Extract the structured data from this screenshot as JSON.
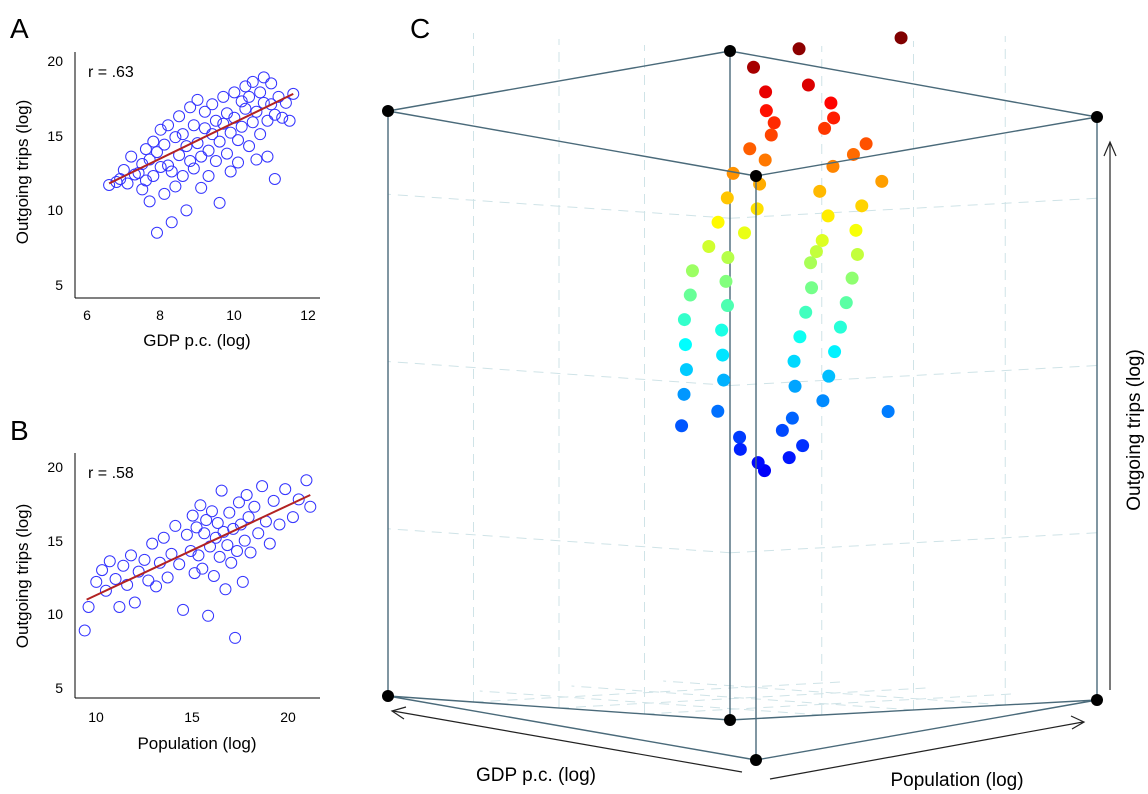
{
  "chart_data": [
    {
      "panel": "A",
      "type": "scatter",
      "annotation": "r = .63",
      "xlabel": "GDP p.c. (log)",
      "ylabel": "Outgoing trips (log)",
      "xlim": [
        6,
        12
      ],
      "ylim": [
        5,
        20
      ],
      "xticks": [
        "6",
        "8",
        "10",
        "12"
      ],
      "yticks": [
        "5",
        "10",
        "15",
        "20"
      ],
      "marker_color": "#3333ff",
      "fit_color": "#b22222",
      "fit_line": [
        [
          6.6,
          11.8
        ],
        [
          11.6,
          17.8
        ]
      ],
      "points": [
        [
          6.6,
          11.7
        ],
        [
          6.8,
          11.9
        ],
        [
          6.9,
          12.1
        ],
        [
          7.0,
          12.7
        ],
        [
          7.1,
          11.8
        ],
        [
          7.2,
          13.6
        ],
        [
          7.3,
          12.4
        ],
        [
          7.4,
          12.5
        ],
        [
          7.5,
          11.4
        ],
        [
          7.5,
          13.1
        ],
        [
          7.6,
          14.1
        ],
        [
          7.6,
          12.0
        ],
        [
          7.7,
          13.4
        ],
        [
          7.7,
          10.6
        ],
        [
          7.8,
          14.6
        ],
        [
          7.8,
          12.3
        ],
        [
          7.9,
          13.9
        ],
        [
          7.9,
          8.5
        ],
        [
          8.0,
          15.4
        ],
        [
          8.0,
          12.9
        ],
        [
          8.1,
          11.1
        ],
        [
          8.1,
          14.4
        ],
        [
          8.2,
          13.0
        ],
        [
          8.2,
          15.7
        ],
        [
          8.3,
          12.6
        ],
        [
          8.3,
          9.2
        ],
        [
          8.4,
          14.9
        ],
        [
          8.4,
          11.6
        ],
        [
          8.5,
          13.7
        ],
        [
          8.5,
          16.3
        ],
        [
          8.6,
          12.3
        ],
        [
          8.6,
          15.1
        ],
        [
          8.7,
          14.3
        ],
        [
          8.7,
          10.0
        ],
        [
          8.8,
          13.3
        ],
        [
          8.8,
          16.9
        ],
        [
          8.9,
          15.7
        ],
        [
          8.9,
          12.8
        ],
        [
          9.0,
          14.5
        ],
        [
          9.0,
          17.4
        ],
        [
          9.1,
          13.6
        ],
        [
          9.1,
          11.5
        ],
        [
          9.2,
          15.5
        ],
        [
          9.2,
          16.6
        ],
        [
          9.3,
          14.0
        ],
        [
          9.3,
          12.3
        ],
        [
          9.4,
          17.1
        ],
        [
          9.4,
          15.1
        ],
        [
          9.5,
          13.3
        ],
        [
          9.5,
          16.0
        ],
        [
          9.6,
          14.6
        ],
        [
          9.6,
          10.5
        ],
        [
          9.7,
          17.6
        ],
        [
          9.7,
          15.8
        ],
        [
          9.8,
          13.8
        ],
        [
          9.8,
          16.5
        ],
        [
          9.9,
          15.2
        ],
        [
          9.9,
          12.6
        ],
        [
          10.0,
          17.9
        ],
        [
          10.0,
          16.2
        ],
        [
          10.1,
          14.7
        ],
        [
          10.1,
          13.2
        ],
        [
          10.2,
          17.3
        ],
        [
          10.2,
          15.6
        ],
        [
          10.3,
          18.3
        ],
        [
          10.3,
          16.8
        ],
        [
          10.4,
          14.3
        ],
        [
          10.4,
          17.6
        ],
        [
          10.5,
          15.9
        ],
        [
          10.5,
          18.6
        ],
        [
          10.6,
          16.6
        ],
        [
          10.6,
          13.4
        ],
        [
          10.7,
          17.9
        ],
        [
          10.7,
          15.1
        ],
        [
          10.8,
          18.9
        ],
        [
          10.8,
          17.2
        ],
        [
          10.9,
          16.0
        ],
        [
          10.9,
          13.6
        ],
        [
          11.0,
          18.5
        ],
        [
          11.0,
          17.1
        ],
        [
          11.1,
          16.4
        ],
        [
          11.1,
          12.1
        ],
        [
          11.2,
          17.6
        ],
        [
          11.3,
          16.2
        ],
        [
          11.4,
          17.2
        ],
        [
          11.5,
          16.0
        ],
        [
          11.6,
          17.8
        ]
      ]
    },
    {
      "panel": "B",
      "type": "scatter",
      "annotation": "r = .58",
      "xlabel": "Population (log)",
      "ylabel": "Outgoing trips (log)",
      "xlim": [
        9,
        21.5
      ],
      "ylim": [
        5,
        20
      ],
      "xticks": [
        "10",
        "15",
        "20"
      ],
      "yticks": [
        "5",
        "10",
        "15",
        "20"
      ],
      "marker_color": "#3333ff",
      "fit_color": "#b22222",
      "fit_line": [
        [
          9.5,
          11.0
        ],
        [
          21.1,
          18.1
        ]
      ],
      "points": [
        [
          9.4,
          8.9
        ],
        [
          9.6,
          10.5
        ],
        [
          10.0,
          12.2
        ],
        [
          10.3,
          13.0
        ],
        [
          10.5,
          11.6
        ],
        [
          10.7,
          13.6
        ],
        [
          11.0,
          12.4
        ],
        [
          11.2,
          10.5
        ],
        [
          11.4,
          13.3
        ],
        [
          11.6,
          12.0
        ],
        [
          11.8,
          14.0
        ],
        [
          12.0,
          10.8
        ],
        [
          12.2,
          12.9
        ],
        [
          12.5,
          13.7
        ],
        [
          12.7,
          12.3
        ],
        [
          12.9,
          14.8
        ],
        [
          13.1,
          11.9
        ],
        [
          13.3,
          13.5
        ],
        [
          13.5,
          15.2
        ],
        [
          13.7,
          12.5
        ],
        [
          13.9,
          14.1
        ],
        [
          14.1,
          16.0
        ],
        [
          14.3,
          13.4
        ],
        [
          14.5,
          10.3
        ],
        [
          14.7,
          15.4
        ],
        [
          14.9,
          14.3
        ],
        [
          15.0,
          16.7
        ],
        [
          15.1,
          12.8
        ],
        [
          15.2,
          15.9
        ],
        [
          15.3,
          14.0
        ],
        [
          15.4,
          17.4
        ],
        [
          15.5,
          13.1
        ],
        [
          15.6,
          15.5
        ],
        [
          15.7,
          16.4
        ],
        [
          15.8,
          9.9
        ],
        [
          15.9,
          14.6
        ],
        [
          16.0,
          17.0
        ],
        [
          16.1,
          12.6
        ],
        [
          16.2,
          15.2
        ],
        [
          16.3,
          16.2
        ],
        [
          16.4,
          13.9
        ],
        [
          16.5,
          18.4
        ],
        [
          16.6,
          15.6
        ],
        [
          16.7,
          11.7
        ],
        [
          16.8,
          14.7
        ],
        [
          16.9,
          16.9
        ],
        [
          17.0,
          13.5
        ],
        [
          17.1,
          15.8
        ],
        [
          17.2,
          8.4
        ],
        [
          17.3,
          14.3
        ],
        [
          17.4,
          17.6
        ],
        [
          17.5,
          16.1
        ],
        [
          17.6,
          12.2
        ],
        [
          17.7,
          15.0
        ],
        [
          17.8,
          18.1
        ],
        [
          17.9,
          16.6
        ],
        [
          18.0,
          14.2
        ],
        [
          18.2,
          17.3
        ],
        [
          18.4,
          15.5
        ],
        [
          18.6,
          18.7
        ],
        [
          18.8,
          16.3
        ],
        [
          19.0,
          14.8
        ],
        [
          19.2,
          17.7
        ],
        [
          19.5,
          16.1
        ],
        [
          19.8,
          18.5
        ],
        [
          20.2,
          16.6
        ],
        [
          20.5,
          17.8
        ],
        [
          20.9,
          19.1
        ],
        [
          21.1,
          17.3
        ]
      ]
    },
    {
      "panel": "C",
      "type": "scatter3d",
      "xlabel": "GDP p.c. (log)",
      "ylabel": "Population (log)",
      "zlabel": "Outgoing trips (log)",
      "colormap": "jet, by outgoing trips",
      "grid": true,
      "points": [
        [
          0.06,
          0.12,
          0.97
        ],
        [
          0.12,
          0.3,
          0.99
        ],
        [
          0.09,
          0.55,
          1.0
        ],
        [
          0.2,
          0.4,
          0.93
        ],
        [
          0.25,
          0.33,
          0.92
        ],
        [
          0.22,
          0.48,
          0.9
        ],
        [
          0.28,
          0.36,
          0.89
        ],
        [
          0.18,
          0.45,
          0.88
        ],
        [
          0.3,
          0.4,
          0.87
        ],
        [
          0.26,
          0.5,
          0.86
        ],
        [
          0.33,
          0.42,
          0.85
        ],
        [
          0.16,
          0.52,
          0.84
        ],
        [
          0.35,
          0.38,
          0.83
        ],
        [
          0.24,
          0.56,
          0.82
        ],
        [
          0.38,
          0.45,
          0.81
        ],
        [
          0.3,
          0.56,
          0.8
        ],
        [
          0.42,
          0.4,
          0.79
        ],
        [
          0.2,
          0.6,
          0.78
        ],
        [
          0.45,
          0.5,
          0.77
        ],
        [
          0.36,
          0.58,
          0.76
        ],
        [
          0.48,
          0.44,
          0.75
        ],
        [
          0.28,
          0.62,
          0.74
        ],
        [
          0.5,
          0.54,
          0.73
        ],
        [
          0.4,
          0.64,
          0.72
        ],
        [
          0.55,
          0.48,
          0.71
        ],
        [
          0.34,
          0.66,
          0.7
        ],
        [
          0.58,
          0.58,
          0.69
        ],
        [
          0.46,
          0.68,
          0.68
        ],
        [
          0.62,
          0.52,
          0.67
        ],
        [
          0.52,
          0.72,
          0.66
        ],
        [
          0.4,
          0.72,
          0.66
        ],
        [
          0.65,
          0.6,
          0.65
        ],
        [
          0.58,
          0.76,
          0.64
        ],
        [
          0.7,
          0.55,
          0.63
        ],
        [
          0.48,
          0.78,
          0.62
        ],
        [
          0.72,
          0.66,
          0.61
        ],
        [
          0.62,
          0.8,
          0.6
        ],
        [
          0.76,
          0.6,
          0.59
        ],
        [
          0.54,
          0.82,
          0.58
        ],
        [
          0.78,
          0.72,
          0.57
        ],
        [
          0.68,
          0.84,
          0.56
        ],
        [
          0.82,
          0.64,
          0.55
        ],
        [
          0.6,
          0.86,
          0.54
        ],
        [
          0.84,
          0.76,
          0.53
        ],
        [
          0.74,
          0.88,
          0.52
        ],
        [
          0.86,
          0.68,
          0.51
        ],
        [
          0.66,
          0.9,
          0.5
        ],
        [
          0.88,
          0.8,
          0.49
        ],
        [
          0.8,
          0.92,
          0.48
        ],
        [
          0.9,
          0.72,
          0.47
        ],
        [
          0.72,
          0.94,
          0.46
        ],
        [
          0.92,
          0.84,
          0.45
        ],
        [
          0.84,
          0.96,
          0.44
        ],
        [
          0.95,
          0.76,
          0.43
        ],
        [
          0.78,
          0.98,
          0.42
        ],
        [
          0.6,
          0.99,
          0.41
        ],
        [
          0.98,
          0.88,
          0.4
        ],
        [
          0.88,
          0.99,
          0.39
        ],
        [
          1.0,
          0.8,
          0.38
        ],
        [
          0.92,
          1.0,
          0.37
        ],
        [
          0.97,
          0.93,
          0.36
        ],
        [
          0.85,
          0.99,
          0.35
        ],
        [
          1.0,
          0.96,
          0.34
        ],
        [
          0.9,
          1.0,
          0.33
        ],
        [
          0.98,
          0.99,
          0.32
        ],
        [
          0.94,
          0.97,
          0.31
        ]
      ]
    }
  ],
  "panels": {
    "a": {
      "letter": "A"
    },
    "b": {
      "letter": "B"
    },
    "c": {
      "letter": "C"
    }
  }
}
